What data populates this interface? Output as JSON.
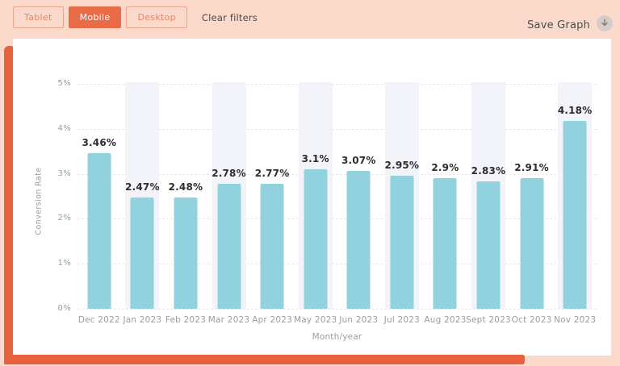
{
  "toolbar": {
    "filters": [
      {
        "label": "Tablet",
        "active": false
      },
      {
        "label": "Mobile",
        "active": true
      },
      {
        "label": "Desktop",
        "active": false
      }
    ],
    "clear_filters": "Clear filters",
    "save_graph": "Save Graph",
    "download_icon": "download-arrow-in-circle"
  },
  "chart_data": {
    "type": "bar",
    "title": "",
    "categories": [
      "Dec 2022",
      "Jan 2023",
      "Feb 2023",
      "Mar 2023",
      "Apr 2023",
      "May 2023",
      "Jun 2023",
      "Jul 2023",
      "Aug 2023",
      "Sept 2023",
      "Oct 2023",
      "Nov 2023"
    ],
    "values": [
      3.46,
      2.47,
      2.48,
      2.78,
      2.77,
      3.1,
      3.07,
      2.95,
      2.9,
      2.83,
      2.91,
      4.18
    ],
    "value_labels": [
      "3.46%",
      "2.47%",
      "2.48%",
      "2.78%",
      "2.77%",
      "3.1%",
      "3.07%",
      "2.95%",
      "2.9%",
      "2.83%",
      "2.91%",
      "4.18%"
    ],
    "xlabel": "Month/year",
    "ylabel": "Conversion Rate",
    "y_tick_values": [
      0,
      1,
      2,
      3,
      4,
      5
    ],
    "y_tick_labels": [
      "0%",
      "1%",
      "2%",
      "3%",
      "4%",
      "5%"
    ],
    "ylim": [
      0,
      5
    ],
    "grid": true,
    "legend": "none",
    "striped_columns": [
      1,
      3,
      5,
      7,
      9,
      11
    ],
    "bar_color": "#92d1de",
    "stripe_color": "#f3f4fa"
  },
  "colors": {
    "page_background": "#fbd9cb",
    "accent_orange": "#e96b47",
    "border_band_orange": "#e7613c",
    "bar_fill": "#92d1de",
    "column_stripe": "#f3f4fa",
    "gridline": "#e7e8ee",
    "axis_text": "#9b9ba3",
    "value_text": "#2d2d2d",
    "dark_text": "#4b4b4b"
  }
}
